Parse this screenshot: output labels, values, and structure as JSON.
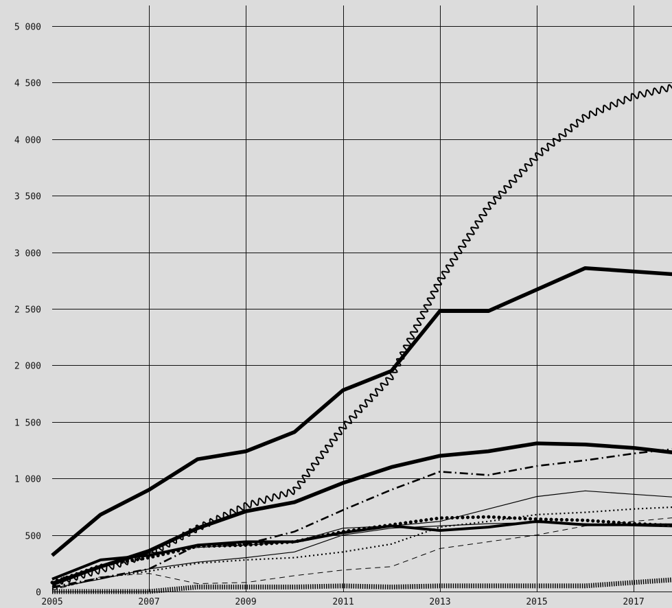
{
  "chart_data": {
    "type": "line",
    "title": "",
    "xlabel": "",
    "ylabel": "",
    "x": [
      2005,
      2006,
      2007,
      2008,
      2009,
      2010,
      2011,
      2012,
      2013,
      2014,
      2015,
      2016,
      2017,
      2018
    ],
    "xticks": [
      "2005",
      "2007",
      "2009",
      "2011",
      "2013",
      "2015",
      "2017"
    ],
    "yticks": [
      "0",
      "500",
      "1 000",
      "1 500",
      "2 000",
      "2 500",
      "3 000",
      "3 500",
      "4 000",
      "4 500",
      "5 000"
    ],
    "ylim": [
      0,
      5000
    ],
    "grid": true,
    "legend": "none",
    "series": [
      {
        "style": "wavy",
        "values": [
          70,
          190,
          330,
          560,
          760,
          890,
          1450,
          1900,
          2750,
          3400,
          3850,
          4200,
          4380,
          4480
        ]
      },
      {
        "style": "triple-line",
        "values": [
          320,
          680,
          900,
          1170,
          1240,
          1410,
          1780,
          1950,
          2480,
          2480,
          2670,
          2860,
          2830,
          2800
        ]
      },
      {
        "style": "triple-line",
        "values": [
          70,
          220,
          360,
          560,
          710,
          790,
          960,
          1100,
          1200,
          1240,
          1310,
          1300,
          1270,
          1220
        ]
      },
      {
        "style": "dash-dot",
        "values": [
          40,
          120,
          200,
          410,
          420,
          530,
          720,
          900,
          1060,
          1030,
          1110,
          1160,
          1220,
          1270
        ]
      },
      {
        "style": "thin-solid",
        "values": [
          50,
          210,
          340,
          390,
          410,
          440,
          560,
          580,
          620,
          730,
          840,
          890,
          860,
          830
        ]
      },
      {
        "style": "thin-dotted",
        "values": [
          20,
          120,
          180,
          250,
          280,
          300,
          350,
          420,
          570,
          620,
          680,
          700,
          730,
          750
        ]
      },
      {
        "style": "thin-dashed",
        "values": [
          10,
          130,
          160,
          70,
          80,
          140,
          190,
          220,
          380,
          440,
          500,
          580,
          620,
          660
        ]
      },
      {
        "style": "heavy-dotted",
        "values": [
          80,
          230,
          300,
          400,
          410,
          440,
          530,
          590,
          650,
          660,
          640,
          630,
          600,
          580
        ]
      },
      {
        "style": "double-line",
        "values": [
          110,
          280,
          320,
          410,
          440,
          440,
          520,
          580,
          540,
          570,
          620,
          590,
          590,
          590
        ]
      },
      {
        "style": "thin-solid",
        "values": [
          30,
          110,
          200,
          260,
          300,
          350,
          500,
          560,
          580,
          600,
          610,
          600,
          580,
          570
        ]
      },
      {
        "style": "hatched",
        "values": [
          0,
          0,
          0,
          40,
          40,
          40,
          50,
          40,
          50,
          50,
          50,
          50,
          80,
          110
        ]
      }
    ]
  }
}
